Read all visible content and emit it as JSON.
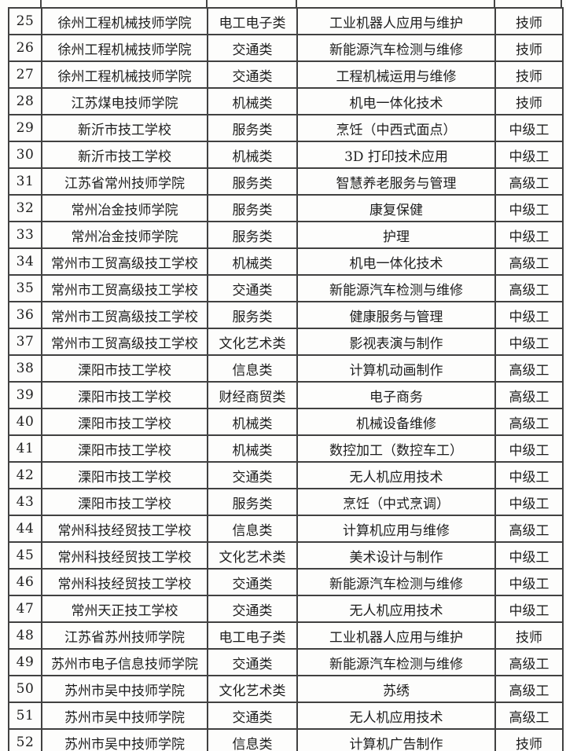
{
  "document": {
    "type": "scanned-table-fragment",
    "visible_row_range": "25-52",
    "line_color": "#414141",
    "text_color": "#1d1d1d",
    "background_color": "#fdfdfc"
  },
  "table": {
    "rows": [
      {
        "no": "25",
        "school": "徐州工程机械技师学院",
        "category": "电工电子类",
        "major": "工业机器人应用与维护",
        "level": "技师"
      },
      {
        "no": "26",
        "school": "徐州工程机械技师学院",
        "category": "交通类",
        "major": "新能源汽车检测与维修",
        "level": "技师"
      },
      {
        "no": "27",
        "school": "徐州工程机械技师学院",
        "category": "交通类",
        "major": "工程机械运用与维修",
        "level": "技师"
      },
      {
        "no": "28",
        "school": "江苏煤电技师学院",
        "category": "机械类",
        "major": "机电一体化技术",
        "level": "技师"
      },
      {
        "no": "29",
        "school": "新沂市技工学校",
        "category": "服务类",
        "major": "烹饪（中西式面点）",
        "level": "中级工"
      },
      {
        "no": "30",
        "school": "新沂市技工学校",
        "category": "机械类",
        "major": "3D 打印技术应用",
        "level": "中级工"
      },
      {
        "no": "31",
        "school": "江苏省常州技师学院",
        "category": "服务类",
        "major": "智慧养老服务与管理",
        "level": "高级工"
      },
      {
        "no": "32",
        "school": "常州冶金技师学院",
        "category": "服务类",
        "major": "康复保健",
        "level": "中级工"
      },
      {
        "no": "33",
        "school": "常州冶金技师学院",
        "category": "服务类",
        "major": "护理",
        "level": "中级工"
      },
      {
        "no": "34",
        "school": "常州市工贸高级技工学校",
        "category": "机械类",
        "major": "机电一体化技术",
        "level": "高级工"
      },
      {
        "no": "35",
        "school": "常州市工贸高级技工学校",
        "category": "交通类",
        "major": "新能源汽车检测与维修",
        "level": "高级工"
      },
      {
        "no": "36",
        "school": "常州市工贸高级技工学校",
        "category": "服务类",
        "major": "健康服务与管理",
        "level": "中级工"
      },
      {
        "no": "37",
        "school": "常州市工贸高级技工学校",
        "category": "文化艺术类",
        "major": "影视表演与制作",
        "level": "中级工"
      },
      {
        "no": "38",
        "school": "溧阳市技工学校",
        "category": "信息类",
        "major": "计算机动画制作",
        "level": "高级工"
      },
      {
        "no": "39",
        "school": "溧阳市技工学校",
        "category": "财经商贸类",
        "major": "电子商务",
        "level": "高级工"
      },
      {
        "no": "40",
        "school": "溧阳市技工学校",
        "category": "机械类",
        "major": "机械设备维修",
        "level": "高级工"
      },
      {
        "no": "41",
        "school": "溧阳市技工学校",
        "category": "机械类",
        "major": "数控加工（数控车工）",
        "level": "中级工"
      },
      {
        "no": "42",
        "school": "溧阳市技工学校",
        "category": "交通类",
        "major": "无人机应用技术",
        "level": "中级工"
      },
      {
        "no": "43",
        "school": "溧阳市技工学校",
        "category": "服务类",
        "major": "烹饪（中式烹调）",
        "level": "中级工"
      },
      {
        "no": "44",
        "school": "常州科技经贸技工学校",
        "category": "信息类",
        "major": "计算机应用与维修",
        "level": "高级工"
      },
      {
        "no": "45",
        "school": "常州科技经贸技工学校",
        "category": "文化艺术类",
        "major": "美术设计与制作",
        "level": "中级工"
      },
      {
        "no": "46",
        "school": "常州科技经贸技工学校",
        "category": "交通类",
        "major": "新能源汽车检测与维修",
        "level": "中级工"
      },
      {
        "no": "47",
        "school": "常州天正技工学校",
        "category": "交通类",
        "major": "无人机应用技术",
        "level": "中级工"
      },
      {
        "no": "48",
        "school": "江苏省苏州技师学院",
        "category": "电工电子类",
        "major": "工业机器人应用与维护",
        "level": "技师"
      },
      {
        "no": "49",
        "school": "苏州市电子信息技师学院",
        "category": "交通类",
        "major": "新能源汽车检测与维修",
        "level": "高级工"
      },
      {
        "no": "50",
        "school": "苏州市吴中技师学院",
        "category": "文化艺术类",
        "major": "苏绣",
        "level": "高级工"
      },
      {
        "no": "51",
        "school": "苏州市吴中技师学院",
        "category": "交通类",
        "major": "无人机应用技术",
        "level": "高级工"
      },
      {
        "no": "52",
        "school": "苏州市吴中技师学院",
        "category": "信息类",
        "major": "计算机广告制作",
        "level": "技师"
      }
    ]
  }
}
